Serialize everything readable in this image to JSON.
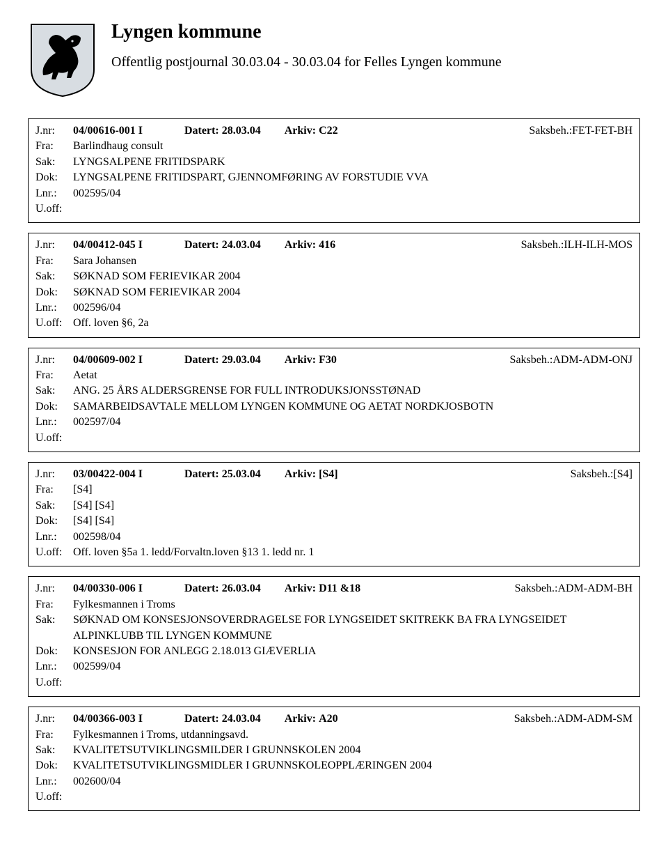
{
  "header": {
    "org_title": "Lyngen kommune",
    "subtitle": "Offentlig postjournal 30.03.04 - 30.03.04 for Felles Lyngen kommune"
  },
  "labels": {
    "jnr": "J.nr:",
    "datert": "Datert:",
    "arkiv": "Arkiv:",
    "saksbeh": "Saksbeh.:",
    "fra": "Fra:",
    "sak": "Sak:",
    "dok": "Dok:",
    "lnr": "Lnr.:",
    "uoff": "U.off:"
  },
  "entries": [
    {
      "jnr": "04/00616-001 I",
      "datert": "28.03.04",
      "arkiv": "C22",
      "saksbeh": "FET-FET-BH",
      "fra": "Barlindhaug consult",
      "sak": "LYNGSALPENE FRITIDSPARK",
      "dok": "LYNGSALPENE FRITIDSPART, GJENNOMFØRING AV FORSTUDIE VVA",
      "lnr": "002595/04",
      "uoff": ""
    },
    {
      "jnr": "04/00412-045 I",
      "datert": "24.03.04",
      "arkiv": "416",
      "saksbeh": "ILH-ILH-MOS",
      "fra": "Sara Johansen",
      "sak": "SØKNAD SOM FERIEVIKAR 2004",
      "dok": "SØKNAD SOM FERIEVIKAR 2004",
      "lnr": "002596/04",
      "uoff": "Off. loven §6, 2a"
    },
    {
      "jnr": "04/00609-002 I",
      "datert": "29.03.04",
      "arkiv": "F30",
      "saksbeh": "ADM-ADM-ONJ",
      "fra": "Aetat",
      "sak": "ANG. 25 ÅRS ALDERSGRENSE FOR FULL INTRODUKSJONSSTØNAD",
      "dok": "SAMARBEIDSAVTALE MELLOM LYNGEN KOMMUNE OG AETAT NORDKJOSBOTN",
      "lnr": "002597/04",
      "uoff": ""
    },
    {
      "jnr": "03/00422-004 I",
      "datert": "25.03.04",
      "arkiv": "[S4]",
      "saksbeh": "[S4]",
      "fra": "[S4]",
      "sak": "[S4] [S4]",
      "dok": "[S4] [S4]",
      "lnr": "002598/04",
      "uoff": "Off. loven §5a 1. ledd/Forvaltn.loven §13 1. ledd nr. 1"
    },
    {
      "jnr": "04/00330-006 I",
      "datert": "26.03.04",
      "arkiv": "D11 &18",
      "saksbeh": "ADM-ADM-BH",
      "fra": "Fylkesmannen i Troms",
      "sak": "SØKNAD OM KONSESJONSOVERDRAGELSE FOR LYNGSEIDET SKITREKK BA FRA LYNGSEIDET ALPINKLUBB TIL LYNGEN KOMMUNE",
      "dok": "KONSESJON FOR ANLEGG 2.18.013 GIÆVERLIA",
      "lnr": "002599/04",
      "uoff": ""
    },
    {
      "jnr": "04/00366-003 I",
      "datert": "24.03.04",
      "arkiv": "A20",
      "saksbeh": "ADM-ADM-SM",
      "fra": "Fylkesmannen i Troms, utdanningsavd.",
      "sak": "KVALITETSUTVIKLINGSMILDER I GRUNNSKOLEN 2004",
      "dok": "KVALITETSUTVIKLINGSMIDLER I GRUNNSKOLEOPPLÆRINGEN 2004",
      "lnr": "002600/04",
      "uoff": ""
    }
  ]
}
